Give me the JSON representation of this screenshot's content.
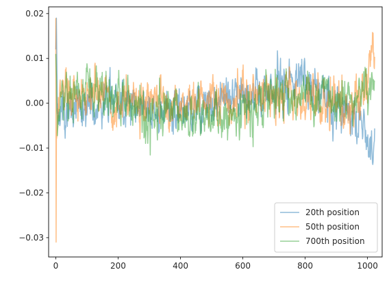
{
  "chart_data": {
    "type": "line",
    "title": "",
    "xlabel": "",
    "ylabel": "",
    "xlim": [
      -23,
      1047
    ],
    "ylim": [
      -0.0343,
      0.0215
    ],
    "xticks": [
      0,
      200,
      400,
      600,
      800,
      1000
    ],
    "yticks": [
      -0.03,
      -0.02,
      -0.01,
      0.0,
      0.01,
      0.02
    ],
    "ytick_labels": [
      "−0.03",
      "−0.02",
      "−0.01",
      "0.00",
      "0.01",
      "0.02"
    ],
    "grid": false,
    "legend_position": "lower right",
    "n_points": 1024,
    "series": [
      {
        "name": "20th position",
        "color": "#1f77b4",
        "alpha": 0.5,
        "anchors_x": [
          0,
          2,
          4,
          8,
          14,
          20,
          40,
          60,
          100,
          150,
          200,
          250,
          300,
          350,
          400,
          450,
          500,
          550,
          600,
          650,
          700,
          740,
          780,
          800,
          850,
          900,
          950,
          980,
          1000,
          1010,
          1018,
          1023
        ],
        "anchors_y": [
          0.012,
          0.019,
          0.004,
          -0.004,
          -0.003,
          -0.003,
          -0.002,
          -0.0015,
          -0.001,
          0.0,
          0.0015,
          0.0,
          -0.0015,
          -0.002,
          -0.001,
          -0.0005,
          0.0,
          0.0005,
          0.001,
          0.0015,
          0.003,
          0.005,
          0.0065,
          0.0045,
          0.002,
          0.0,
          -0.002,
          -0.0045,
          -0.008,
          -0.011,
          -0.013,
          -0.007
        ],
        "noise": 0.0033
      },
      {
        "name": "50th position",
        "color": "#ff7f0e",
        "alpha": 0.5,
        "anchors_x": [
          0,
          1,
          2,
          4,
          8,
          14,
          25,
          60,
          100,
          150,
          200,
          250,
          300,
          350,
          400,
          450,
          500,
          550,
          600,
          650,
          700,
          750,
          800,
          850,
          900,
          950,
          980,
          1000,
          1010,
          1018,
          1023
        ],
        "anchors_y": [
          0.019,
          -0.031,
          -0.008,
          -0.006,
          -0.002,
          0.002,
          0.003,
          0.003,
          0.002,
          0.0025,
          0.002,
          0.001,
          0.0,
          -0.001,
          0.0,
          0.001,
          0.0005,
          0.0,
          0.001,
          0.002,
          0.002,
          0.0015,
          0.001,
          0.0005,
          0.0,
          0.0,
          0.0015,
          0.004,
          0.0085,
          0.0125,
          0.006
        ],
        "noise": 0.0034
      },
      {
        "name": "700th position",
        "color": "#2ca02c",
        "alpha": 0.5,
        "anchors_x": [
          0,
          2,
          5,
          10,
          20,
          40,
          60,
          100,
          150,
          200,
          250,
          300,
          350,
          400,
          450,
          500,
          550,
          600,
          650,
          700,
          750,
          800,
          850,
          900,
          950,
          1000,
          1023
        ],
        "anchors_y": [
          0.011,
          0.006,
          -0.007,
          -0.003,
          0.001,
          0.002,
          0.0025,
          0.002,
          0.002,
          0.001,
          -0.002,
          -0.002,
          -0.0015,
          -0.001,
          -0.003,
          -0.003,
          -0.0025,
          -0.003,
          0.0,
          0.0015,
          0.0005,
          0.002,
          0.0025,
          0.001,
          0.002,
          0.003,
          0.003
        ],
        "noise": 0.0034
      }
    ]
  }
}
